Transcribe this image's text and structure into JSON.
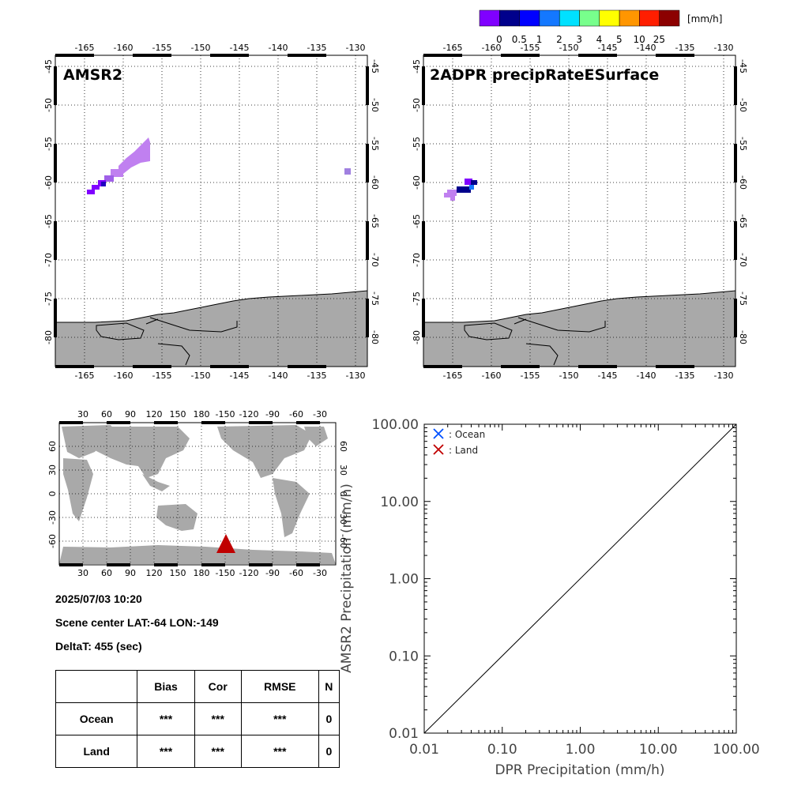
{
  "colorbar": {
    "unit": "[mm/h]",
    "ticks": [
      "0",
      "0.5",
      "1",
      "2",
      "3",
      "4",
      "5",
      "10",
      "25"
    ],
    "colors": [
      "#8000ff",
      "#00008c",
      "#0000ff",
      "#1478ff",
      "#00e1ff",
      "#78ff8c",
      "#ffff00",
      "#ff9600",
      "#ff1e00",
      "#8c0000"
    ]
  },
  "panel_amsr2": {
    "label": "AMSR2"
  },
  "panel_dpr": {
    "label": "2ADPR precipRateESurface"
  },
  "regional_axes": {
    "lon_ticks": [
      "-165",
      "-160",
      "-155",
      "-150",
      "-145",
      "-140",
      "-135",
      "-130"
    ],
    "lat_ticks": [
      "-45",
      "-50",
      "-55",
      "-60",
      "-65",
      "-70",
      "-75",
      "-80"
    ]
  },
  "globe_axes": {
    "lon_ticks": [
      "30",
      "60",
      "90",
      "120",
      "150",
      "180",
      "-150",
      "-120",
      "-90",
      "-60",
      "-30"
    ],
    "lat_ticks": [
      "60",
      "30",
      "0",
      "-30",
      "-60"
    ]
  },
  "info": {
    "datetime": "2025/07/03 10:20",
    "scene_center": "Scene center LAT:-64   LON:-149",
    "deltat": "DeltaT:  455 (sec)"
  },
  "stats_table": {
    "headers": [
      "",
      "Bias",
      "Cor",
      "RMSE",
      "N"
    ],
    "rows": [
      [
        "Ocean",
        "***",
        "***",
        "***",
        "0"
      ],
      [
        "Land",
        "***",
        "***",
        "***",
        "0"
      ]
    ]
  },
  "colors": {
    "land": "#a9a9a9",
    "ocean_marker": "#0050ff",
    "land_marker": "#c00000",
    "scene_marker": "#c00000"
  },
  "chart_data": [
    {
      "type": "heatmap",
      "title": "AMSR2",
      "lon_range": [
        -170,
        -130
      ],
      "lat_range": [
        -84,
        -45
      ],
      "pixels_note": "precipitation rate swath near 60S 165W-157W and 59S 132W"
    },
    {
      "type": "heatmap",
      "title": "2ADPR precipRateESurface",
      "lon_range": [
        -170,
        -130
      ],
      "lat_range": [
        -84,
        -45
      ],
      "pixels_note": "small swath near 61S 166W-164W"
    },
    {
      "type": "scatter",
      "xlabel": "DPR Precipitation (mm/h)",
      "ylabel": "AMSR2 Precipitation (mm/h)",
      "xscale": "log",
      "yscale": "log",
      "xlim": [
        0.01,
        100
      ],
      "ylim": [
        0.01,
        100
      ],
      "xticks": [
        "0.01",
        "0.10",
        "1.00",
        "10.00",
        "100.00"
      ],
      "yticks": [
        "0.01",
        "0.10",
        "1.00",
        "10.00",
        "100.00"
      ],
      "legend": [
        {
          "name": ": Ocean",
          "marker": "x",
          "color": "#0050ff"
        },
        {
          "name": ": Land",
          "marker": "x",
          "color": "#c00000"
        }
      ],
      "legend_position": "top-left",
      "series": [
        {
          "name": "Ocean",
          "points": []
        },
        {
          "name": "Land",
          "points": []
        }
      ],
      "reference_line": "1:1 diagonal"
    }
  ]
}
